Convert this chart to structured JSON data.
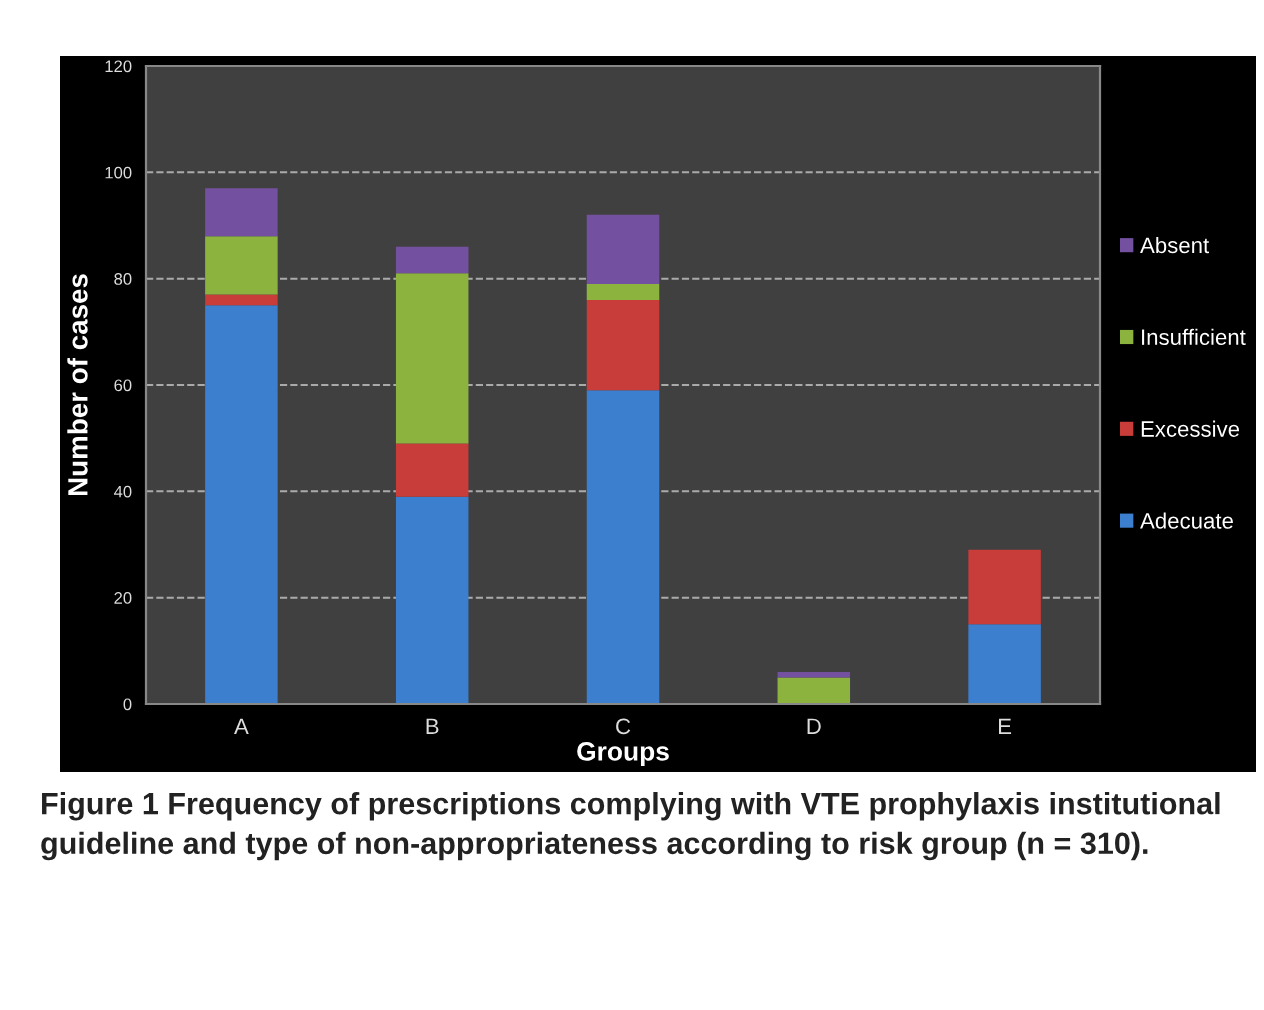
{
  "chart_data": {
    "type": "bar",
    "stacked": true,
    "categories": [
      "A",
      "B",
      "C",
      "D",
      "E"
    ],
    "series": [
      {
        "name": "Adecuate",
        "color": "#3d7fcf",
        "values": [
          75,
          39,
          59,
          0,
          15
        ]
      },
      {
        "name": "Excessive",
        "color": "#c83c3a",
        "values": [
          2,
          10,
          17,
          0,
          14
        ]
      },
      {
        "name": "Insufficient",
        "color": "#8db33f",
        "values": [
          11,
          32,
          3,
          5,
          0
        ]
      },
      {
        "name": "Absent",
        "color": "#7450a0",
        "values": [
          9,
          5,
          13,
          1,
          0
        ]
      }
    ],
    "xlabel": "Groups",
    "ylabel": "Number of cases",
    "ylim": [
      0,
      120
    ],
    "yticks": [
      0,
      20,
      40,
      60,
      80,
      100,
      120
    ],
    "grid": "y",
    "legend": "right",
    "annotations": [
      "Figure 1 Frequency of prescriptions complying with VTE prophylaxis institutional guideline and type of non-appropriateness according to risk group (n = 310)."
    ]
  }
}
